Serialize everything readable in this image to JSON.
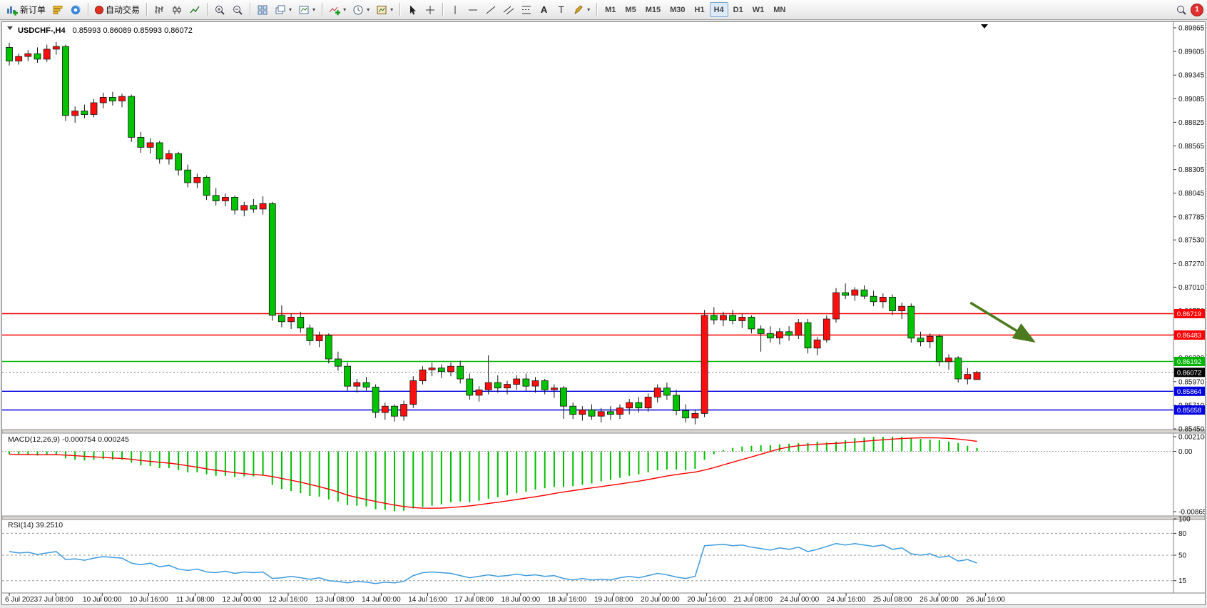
{
  "toolbar": {
    "new_order": "新订单",
    "autotrading": "自动交易",
    "timeframes": [
      "M1",
      "M5",
      "M15",
      "M30",
      "H1",
      "H4",
      "D1",
      "W1",
      "MN"
    ],
    "active_timeframe": "H4",
    "notification_count": "1"
  },
  "chart_data": [
    {
      "type": "candlestick",
      "symbol": "USDCHF-,H4",
      "timeframe": "H4",
      "ohlc_text": "0.85993 0.86089 0.85993 0.86072",
      "ylim": [
        0.8545,
        0.89865
      ],
      "y_axis_labels": [
        0.89865,
        0.89605,
        0.89345,
        0.89085,
        0.88825,
        0.88565,
        0.88305,
        0.88045,
        0.87785,
        0.8753,
        0.8727,
        0.8701,
        0.8675,
        0.8649,
        0.8623,
        0.8597,
        0.8571,
        0.8545
      ],
      "x_labels": [
        "6 Jul 2023",
        "7 Jul 08:00",
        "10 Jul 00:00",
        "10 Jul 16:00",
        "11 Jul 08:00",
        "12 Jul 00:00",
        "12 Jul 16:00",
        "13 Jul 08:00",
        "14 Jul 00:00",
        "14 Jul 16:00",
        "17 Jul 08:00",
        "18 Jul 00:00",
        "18 Jul 16:00",
        "19 Jul 08:00",
        "20 Jul 00:00",
        "20 Jul 16:00",
        "21 Jul 08:00",
        "24 Jul 00:00",
        "24 Jul 16:00",
        "25 Jul 08:00",
        "26 Jul 00:00",
        "26 Jul 16:00"
      ],
      "candles": [
        [
          0.8965,
          0.897,
          0.8945,
          0.895
        ],
        [
          0.895,
          0.8958,
          0.8946,
          0.8955
        ],
        [
          0.8955,
          0.8962,
          0.895,
          0.8958
        ],
        [
          0.8958,
          0.8965,
          0.8948,
          0.8952
        ],
        [
          0.8952,
          0.8968,
          0.8949,
          0.8963
        ],
        [
          0.8963,
          0.8971,
          0.8957,
          0.8966
        ],
        [
          0.8966,
          0.8968,
          0.8884,
          0.889
        ],
        [
          0.889,
          0.89,
          0.8882,
          0.8895
        ],
        [
          0.8895,
          0.8902,
          0.8887,
          0.8891
        ],
        [
          0.8891,
          0.8908,
          0.8888,
          0.8904
        ],
        [
          0.8904,
          0.8915,
          0.8898,
          0.891
        ],
        [
          0.891,
          0.8916,
          0.8901,
          0.8906
        ],
        [
          0.8906,
          0.8914,
          0.8899,
          0.8911
        ],
        [
          0.8911,
          0.8913,
          0.8861,
          0.8866
        ],
        [
          0.8866,
          0.8872,
          0.8849,
          0.8855
        ],
        [
          0.8855,
          0.8865,
          0.8848,
          0.886
        ],
        [
          0.886,
          0.8862,
          0.8837,
          0.8842
        ],
        [
          0.8842,
          0.8852,
          0.8836,
          0.8848
        ],
        [
          0.8848,
          0.885,
          0.8824,
          0.883
        ],
        [
          0.883,
          0.8836,
          0.8811,
          0.8816
        ],
        [
          0.8816,
          0.8826,
          0.881,
          0.8822
        ],
        [
          0.8822,
          0.8824,
          0.8797,
          0.8802
        ],
        [
          0.8802,
          0.881,
          0.8791,
          0.8796
        ],
        [
          0.8796,
          0.8804,
          0.879,
          0.88
        ],
        [
          0.88,
          0.8802,
          0.8781,
          0.8786
        ],
        [
          0.8786,
          0.8795,
          0.8779,
          0.8791
        ],
        [
          0.8791,
          0.8798,
          0.8783,
          0.8787
        ],
        [
          0.8787,
          0.8801,
          0.8781,
          0.8793
        ],
        [
          0.8793,
          0.8795,
          0.8664,
          0.867
        ],
        [
          0.867,
          0.8681,
          0.8657,
          0.8663
        ],
        [
          0.8663,
          0.8672,
          0.8655,
          0.8668
        ],
        [
          0.8668,
          0.8674,
          0.8651,
          0.8656
        ],
        [
          0.8656,
          0.866,
          0.8637,
          0.8642
        ],
        [
          0.8642,
          0.8652,
          0.8635,
          0.8648
        ],
        [
          0.8648,
          0.865,
          0.8617,
          0.8622
        ],
        [
          0.8622,
          0.863,
          0.8609,
          0.8614
        ],
        [
          0.8614,
          0.8618,
          0.8587,
          0.8592
        ],
        [
          0.8592,
          0.86,
          0.8585,
          0.8596
        ],
        [
          0.8596,
          0.8602,
          0.8587,
          0.8591
        ],
        [
          0.8591,
          0.8594,
          0.8557,
          0.8563
        ],
        [
          0.8563,
          0.8574,
          0.8555,
          0.857
        ],
        [
          0.857,
          0.8572,
          0.8553,
          0.8559
        ],
        [
          0.8559,
          0.8576,
          0.8554,
          0.8572
        ],
        [
          0.8572,
          0.8603,
          0.8568,
          0.8598
        ],
        [
          0.8598,
          0.8614,
          0.8594,
          0.861
        ],
        [
          0.861,
          0.8618,
          0.8603,
          0.8612
        ],
        [
          0.8612,
          0.8616,
          0.8601,
          0.8608
        ],
        [
          0.8608,
          0.8618,
          0.8603,
          0.8614
        ],
        [
          0.8614,
          0.862,
          0.8595,
          0.86
        ],
        [
          0.86,
          0.8606,
          0.8577,
          0.8582
        ],
        [
          0.8582,
          0.8592,
          0.8575,
          0.8588
        ],
        [
          0.8588,
          0.8626,
          0.8583,
          0.8596
        ],
        [
          0.8596,
          0.8604,
          0.8585,
          0.859
        ],
        [
          0.859,
          0.8598,
          0.8583,
          0.8594
        ],
        [
          0.8594,
          0.8604,
          0.8588,
          0.86
        ],
        [
          0.86,
          0.8606,
          0.8587,
          0.8592
        ],
        [
          0.8592,
          0.8602,
          0.8585,
          0.8598
        ],
        [
          0.8598,
          0.86,
          0.8583,
          0.8588
        ],
        [
          0.8588,
          0.8594,
          0.8579,
          0.859
        ],
        [
          0.859,
          0.8592,
          0.8556,
          0.857
        ],
        [
          0.857,
          0.8574,
          0.8556,
          0.8561
        ],
        [
          0.8561,
          0.857,
          0.8554,
          0.8566
        ],
        [
          0.8566,
          0.8572,
          0.8555,
          0.8559
        ],
        [
          0.8559,
          0.8568,
          0.8552,
          0.8564
        ],
        [
          0.8564,
          0.857,
          0.8555,
          0.8561
        ],
        [
          0.8561,
          0.8572,
          0.8556,
          0.8568
        ],
        [
          0.8568,
          0.8578,
          0.8561,
          0.8574
        ],
        [
          0.8574,
          0.858,
          0.8563,
          0.8568
        ],
        [
          0.8568,
          0.8584,
          0.8564,
          0.858
        ],
        [
          0.858,
          0.8594,
          0.8574,
          0.859
        ],
        [
          0.859,
          0.8596,
          0.8577,
          0.8582
        ],
        [
          0.8582,
          0.8588,
          0.856,
          0.8565
        ],
        [
          0.8565,
          0.8572,
          0.8552,
          0.8557
        ],
        [
          0.8557,
          0.8566,
          0.855,
          0.8562
        ],
        [
          0.8562,
          0.8676,
          0.8558,
          0.867
        ],
        [
          0.867,
          0.8679,
          0.866,
          0.8665
        ],
        [
          0.8665,
          0.8674,
          0.8658,
          0.867
        ],
        [
          0.867,
          0.8676,
          0.866,
          0.8664
        ],
        [
          0.8664,
          0.8672,
          0.8656,
          0.8668
        ],
        [
          0.8668,
          0.867,
          0.865,
          0.8655
        ],
        [
          0.8655,
          0.8659,
          0.863,
          0.865
        ],
        [
          0.865,
          0.8658,
          0.864,
          0.8645
        ],
        [
          0.8645,
          0.8656,
          0.8638,
          0.8652
        ],
        [
          0.8652,
          0.8658,
          0.8642,
          0.8648
        ],
        [
          0.8648,
          0.8666,
          0.8644,
          0.8662
        ],
        [
          0.8662,
          0.8666,
          0.8628,
          0.8634
        ],
        [
          0.8634,
          0.8646,
          0.8626,
          0.8643
        ],
        [
          0.8643,
          0.867,
          0.864,
          0.8666
        ],
        [
          0.8666,
          0.87,
          0.8662,
          0.8695
        ],
        [
          0.8695,
          0.8705,
          0.8688,
          0.8692
        ],
        [
          0.8692,
          0.8701,
          0.8686,
          0.8698
        ],
        [
          0.8698,
          0.8703,
          0.8688,
          0.8691
        ],
        [
          0.8691,
          0.8697,
          0.868,
          0.8685
        ],
        [
          0.8685,
          0.8694,
          0.8678,
          0.869
        ],
        [
          0.869,
          0.8693,
          0.867,
          0.8675
        ],
        [
          0.8675,
          0.8684,
          0.8666,
          0.868
        ],
        [
          0.868,
          0.8683,
          0.864,
          0.8645
        ],
        [
          0.8645,
          0.8652,
          0.8636,
          0.8641
        ],
        [
          0.8641,
          0.865,
          0.8634,
          0.8647
        ],
        [
          0.8647,
          0.8649,
          0.8614,
          0.8619
        ],
        [
          0.8619,
          0.8627,
          0.861,
          0.8623
        ],
        [
          0.8623,
          0.8625,
          0.8596,
          0.86
        ],
        [
          0.86,
          0.8612,
          0.8594,
          0.8605
        ],
        [
          0.85993,
          0.86089,
          0.85993,
          0.86072
        ]
      ],
      "hlines": [
        {
          "price": 0.86719,
          "color": "#FF0000"
        },
        {
          "price": 0.86483,
          "color": "#FF0000"
        },
        {
          "price": 0.86192,
          "color": "#00B400"
        },
        {
          "price": 0.85864,
          "color": "#0000E0"
        },
        {
          "price": 0.85658,
          "color": "#0000E0"
        }
      ],
      "current_price": 0.86072,
      "annotation_arrow": {
        "from_index": 102.3,
        "from_price": 0.8684,
        "to_index": 108.8,
        "to_price": 0.8643,
        "color": "#4C7A1F"
      }
    },
    {
      "type": "bar",
      "name": "MACD",
      "params": "(12,26,9)",
      "values_text": "-0.000754 0.000245",
      "colors": {
        "histogram": "#00BE00",
        "signal": "#FF0000"
      },
      "histogram": [
        -0.0004,
        -0.0005,
        -0.0004,
        -0.0006,
        -0.0005,
        -0.0004,
        -0.001,
        -0.0012,
        -0.0013,
        -0.0012,
        -0.0011,
        -0.0012,
        -0.0012,
        -0.0016,
        -0.002,
        -0.0021,
        -0.0024,
        -0.0024,
        -0.0027,
        -0.003,
        -0.003,
        -0.0033,
        -0.0035,
        -0.0035,
        -0.0037,
        -0.0036,
        -0.0036,
        -0.0035,
        -0.0048,
        -0.0054,
        -0.0057,
        -0.006,
        -0.0064,
        -0.0065,
        -0.0069,
        -0.0072,
        -0.0077,
        -0.0078,
        -0.0079,
        -0.0083,
        -0.0084,
        -0.0086,
        -0.0085,
        -0.0082,
        -0.008,
        -0.0078,
        -0.0076,
        -0.0073,
        -0.0072,
        -0.0073,
        -0.0071,
        -0.0068,
        -0.0066,
        -0.0063,
        -0.006,
        -0.0058,
        -0.0055,
        -0.0053,
        -0.0051,
        -0.0051,
        -0.005,
        -0.0048,
        -0.0046,
        -0.0043,
        -0.0041,
        -0.0038,
        -0.0035,
        -0.0033,
        -0.003,
        -0.0027,
        -0.0026,
        -0.0026,
        -0.0027,
        -0.0025,
        -0.0012,
        -0.0004,
        0.0002,
        0.0005,
        0.0007,
        0.0008,
        0.0009,
        0.0009,
        0.001,
        0.0011,
        0.0012,
        0.0012,
        0.0014,
        0.0013,
        0.0014,
        0.0016,
        0.0019,
        0.002,
        0.0021,
        0.0021,
        0.0021,
        0.0021,
        0.0019,
        0.0018,
        0.0017,
        0.0016,
        0.0014,
        0.0012,
        0.0008,
        0.0005
      ],
      "y_axis": [
        {
          "v": 0.002106,
          "t": "0.002106"
        },
        {
          "v": 0,
          "t": "0.00"
        },
        {
          "v": -0.008658,
          "t": "-0.008658"
        }
      ]
    },
    {
      "type": "line",
      "name": "RSI",
      "params": "(14)",
      "value_text": "39.2510",
      "color": "#3E9BDE",
      "levels": [
        80,
        50,
        15
      ],
      "y_axis": [
        {
          "v": 100,
          "t": "100"
        },
        {
          "v": 80,
          "t": "80"
        },
        {
          "v": 50,
          "t": "50"
        },
        {
          "v": 15,
          "t": "15"
        }
      ],
      "values": [
        55,
        53,
        54,
        51,
        53,
        55,
        44,
        45,
        43,
        46,
        48,
        47,
        46,
        39,
        37,
        39,
        34,
        36,
        31,
        29,
        31,
        27,
        26,
        28,
        25,
        27,
        26,
        27,
        18,
        19,
        21,
        19,
        17,
        19,
        15,
        14,
        12,
        14,
        13,
        11,
        13,
        12,
        14,
        22,
        26,
        27,
        26,
        25,
        22,
        19,
        21,
        23,
        21,
        22,
        24,
        22,
        23,
        21,
        22,
        18,
        16,
        18,
        16,
        17,
        16,
        19,
        21,
        19,
        22,
        25,
        23,
        20,
        18,
        21,
        63,
        64,
        65,
        63,
        64,
        61,
        59,
        57,
        60,
        58,
        61,
        55,
        58,
        62,
        66,
        64,
        66,
        64,
        62,
        64,
        58,
        60,
        52,
        50,
        52,
        47,
        49,
        42,
        44,
        39.25
      ]
    }
  ]
}
